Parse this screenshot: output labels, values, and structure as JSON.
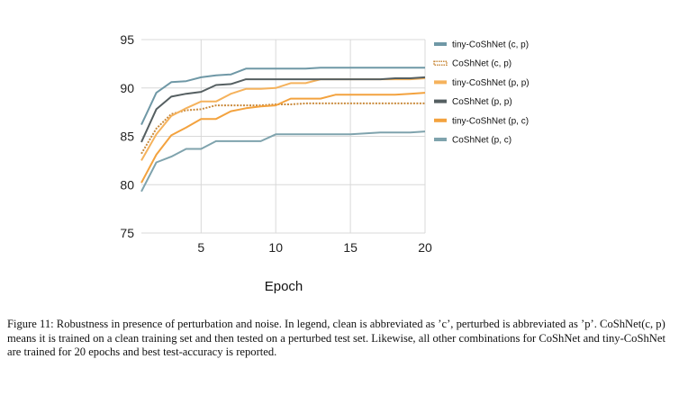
{
  "chart_data": {
    "type": "line",
    "title": "",
    "xlabel": "Epoch",
    "ylabel": "",
    "xlim": [
      1,
      20
    ],
    "ylim": [
      75,
      95
    ],
    "xticks": [
      5,
      10,
      15,
      20
    ],
    "yticks": [
      75,
      80,
      85,
      90,
      95
    ],
    "grid": true,
    "legend_position": "right",
    "x": [
      1,
      2,
      3,
      4,
      5,
      6,
      7,
      8,
      9,
      10,
      11,
      12,
      13,
      14,
      15,
      16,
      17,
      18,
      19,
      20
    ],
    "series": [
      {
        "name": "tiny-CoShNet (c, p)",
        "color": "#6f98a6",
        "dashed": false,
        "values": [
          86.2,
          89.5,
          90.6,
          90.7,
          91.1,
          91.3,
          91.4,
          92.0,
          92.0,
          92.0,
          92.0,
          92.0,
          92.1,
          92.1,
          92.1,
          92.1,
          92.1,
          92.1,
          92.1,
          92.1
        ]
      },
      {
        "name": "CoShNet (c, p)",
        "color": "#c98a3c",
        "dashed": true,
        "values": [
          83.2,
          85.8,
          87.3,
          87.7,
          87.8,
          88.2,
          88.2,
          88.2,
          88.2,
          88.3,
          88.3,
          88.4,
          88.4,
          88.4,
          88.4,
          88.4,
          88.4,
          88.4,
          88.4,
          88.4
        ]
      },
      {
        "name": "tiny-CoShNet (p, p)",
        "color": "#f5b25c",
        "dashed": false,
        "values": [
          82.5,
          85.2,
          87.1,
          87.9,
          88.6,
          88.6,
          89.4,
          89.9,
          89.9,
          90.0,
          90.5,
          90.5,
          90.9,
          90.9,
          90.9,
          90.9,
          90.9,
          90.9,
          90.9,
          91.0
        ]
      },
      {
        "name": "CoShNet (p, p)",
        "color": "#555f61",
        "dashed": false,
        "values": [
          84.4,
          87.8,
          89.1,
          89.4,
          89.6,
          90.3,
          90.4,
          90.9,
          90.9,
          90.9,
          90.9,
          90.9,
          90.9,
          90.9,
          90.9,
          90.9,
          90.9,
          91.0,
          91.0,
          91.1
        ]
      },
      {
        "name": "tiny-CoShNet (p, c)",
        "color": "#f3a23e",
        "dashed": false,
        "values": [
          80.2,
          83.1,
          85.1,
          85.9,
          86.8,
          86.8,
          87.6,
          87.9,
          88.1,
          88.2,
          88.9,
          88.9,
          88.9,
          89.3,
          89.3,
          89.3,
          89.3,
          89.3,
          89.4,
          89.5
        ]
      },
      {
        "name": "CoShNet (p, c)",
        "color": "#7fa3ad",
        "dashed": false,
        "values": [
          79.3,
          82.3,
          82.9,
          83.7,
          83.7,
          84.5,
          84.5,
          84.5,
          84.5,
          85.2,
          85.2,
          85.2,
          85.2,
          85.2,
          85.2,
          85.3,
          85.4,
          85.4,
          85.4,
          85.5
        ]
      }
    ]
  },
  "caption": "Figure 11: Robustness in presence of perturbation and noise. In legend, clean is abbreviated as ’c’, perturbed is abbreviated as ’p’. CoShNet(c, p) means it is trained on a clean training set and then tested on a perturbed test set. Likewise, all other combinations for CoShNet and tiny-CoShNet are trained for 20 epochs and best test-accuracy is reported."
}
